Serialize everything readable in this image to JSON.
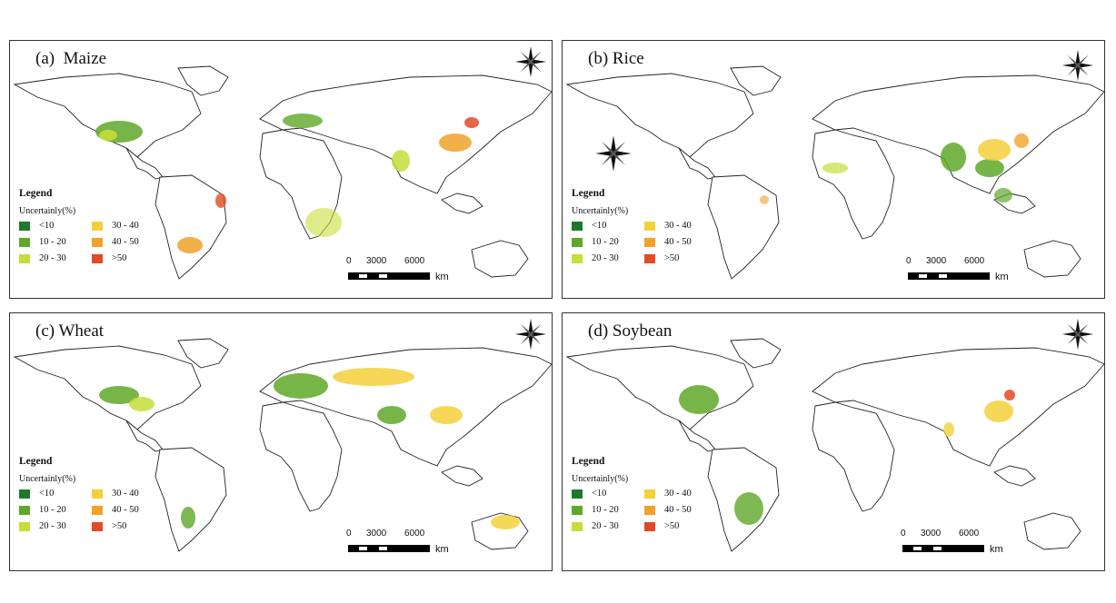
{
  "figure": {
    "legend": {
      "title": "Legend",
      "subtitle": "Uncertainly(%)",
      "classes": [
        {
          "label": "<10",
          "color": "#1e7a2a"
        },
        {
          "label": "10 - 20",
          "color": "#5fa829"
        },
        {
          "label": "20 - 30",
          "color": "#c6dd3a"
        },
        {
          "label": "30 - 40",
          "color": "#f4d03a"
        },
        {
          "label": "40 - 50",
          "color": "#f0a22a"
        },
        {
          "label": ">50",
          "color": "#e24a26"
        }
      ]
    },
    "scale": {
      "ticks": [
        "0",
        "3000",
        "6000"
      ],
      "unit": "km"
    },
    "panels": [
      {
        "title": "(a)  Maize"
      },
      {
        "title": "(b) Rice"
      },
      {
        "title": "(c) Wheat"
      },
      {
        "title": "(d) Soybean"
      }
    ]
  }
}
